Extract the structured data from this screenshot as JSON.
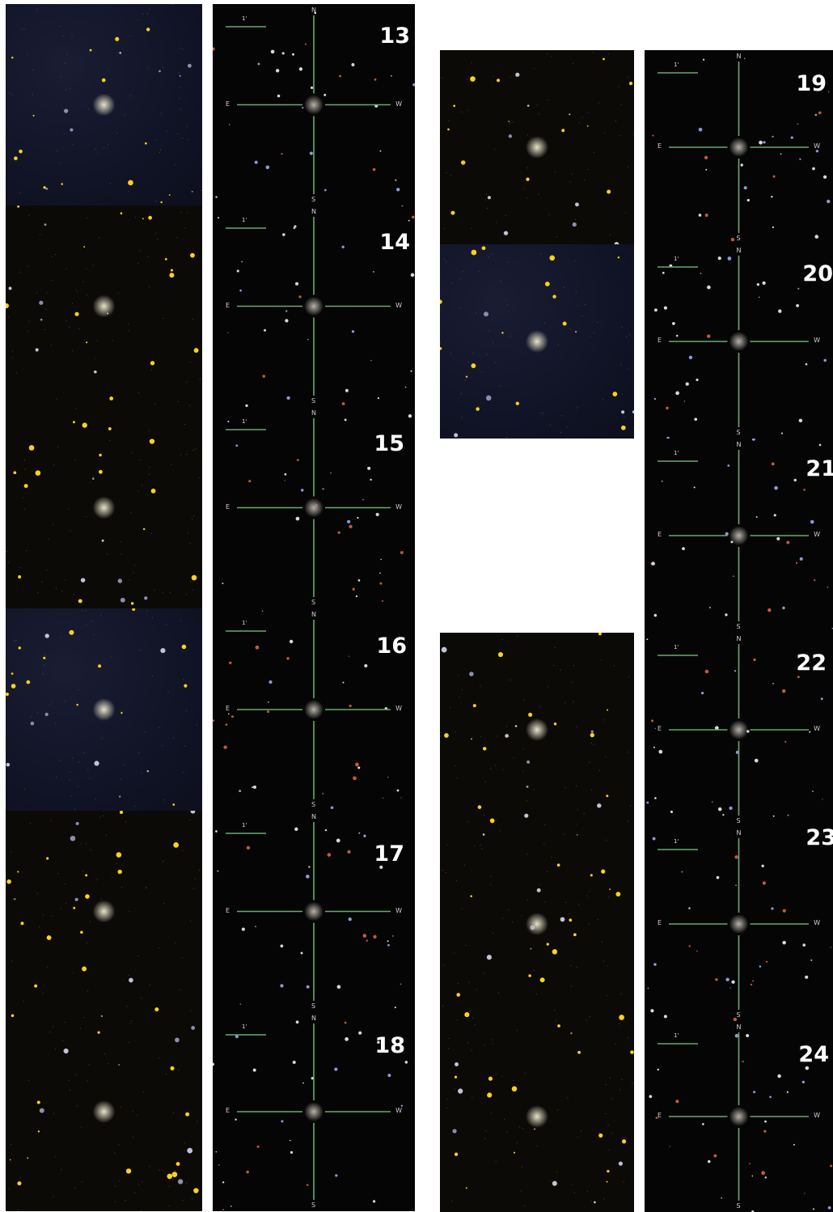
{
  "compass": {
    "n": "N",
    "s": "S",
    "e": "E",
    "w": "W",
    "scale": "1'"
  },
  "colors": {
    "crosshair": "#6aa870",
    "star_yellow": "#ffd21a",
    "background_white": "#ffffff",
    "sky_dark": "#050505",
    "sky_blue_noise": "#141833"
  },
  "panels": [
    {
      "id": "13",
      "label": "13"
    },
    {
      "id": "14",
      "label": "14"
    },
    {
      "id": "15",
      "label": "15"
    },
    {
      "id": "16",
      "label": "16"
    },
    {
      "id": "17",
      "label": "17"
    },
    {
      "id": "18",
      "label": "18"
    },
    {
      "id": "19",
      "label": "19"
    },
    {
      "id": "20",
      "label": "20"
    },
    {
      "id": "21",
      "label": "21"
    },
    {
      "id": "22",
      "label": "22"
    },
    {
      "id": "23",
      "label": "23"
    },
    {
      "id": "24",
      "label": "24"
    }
  ]
}
